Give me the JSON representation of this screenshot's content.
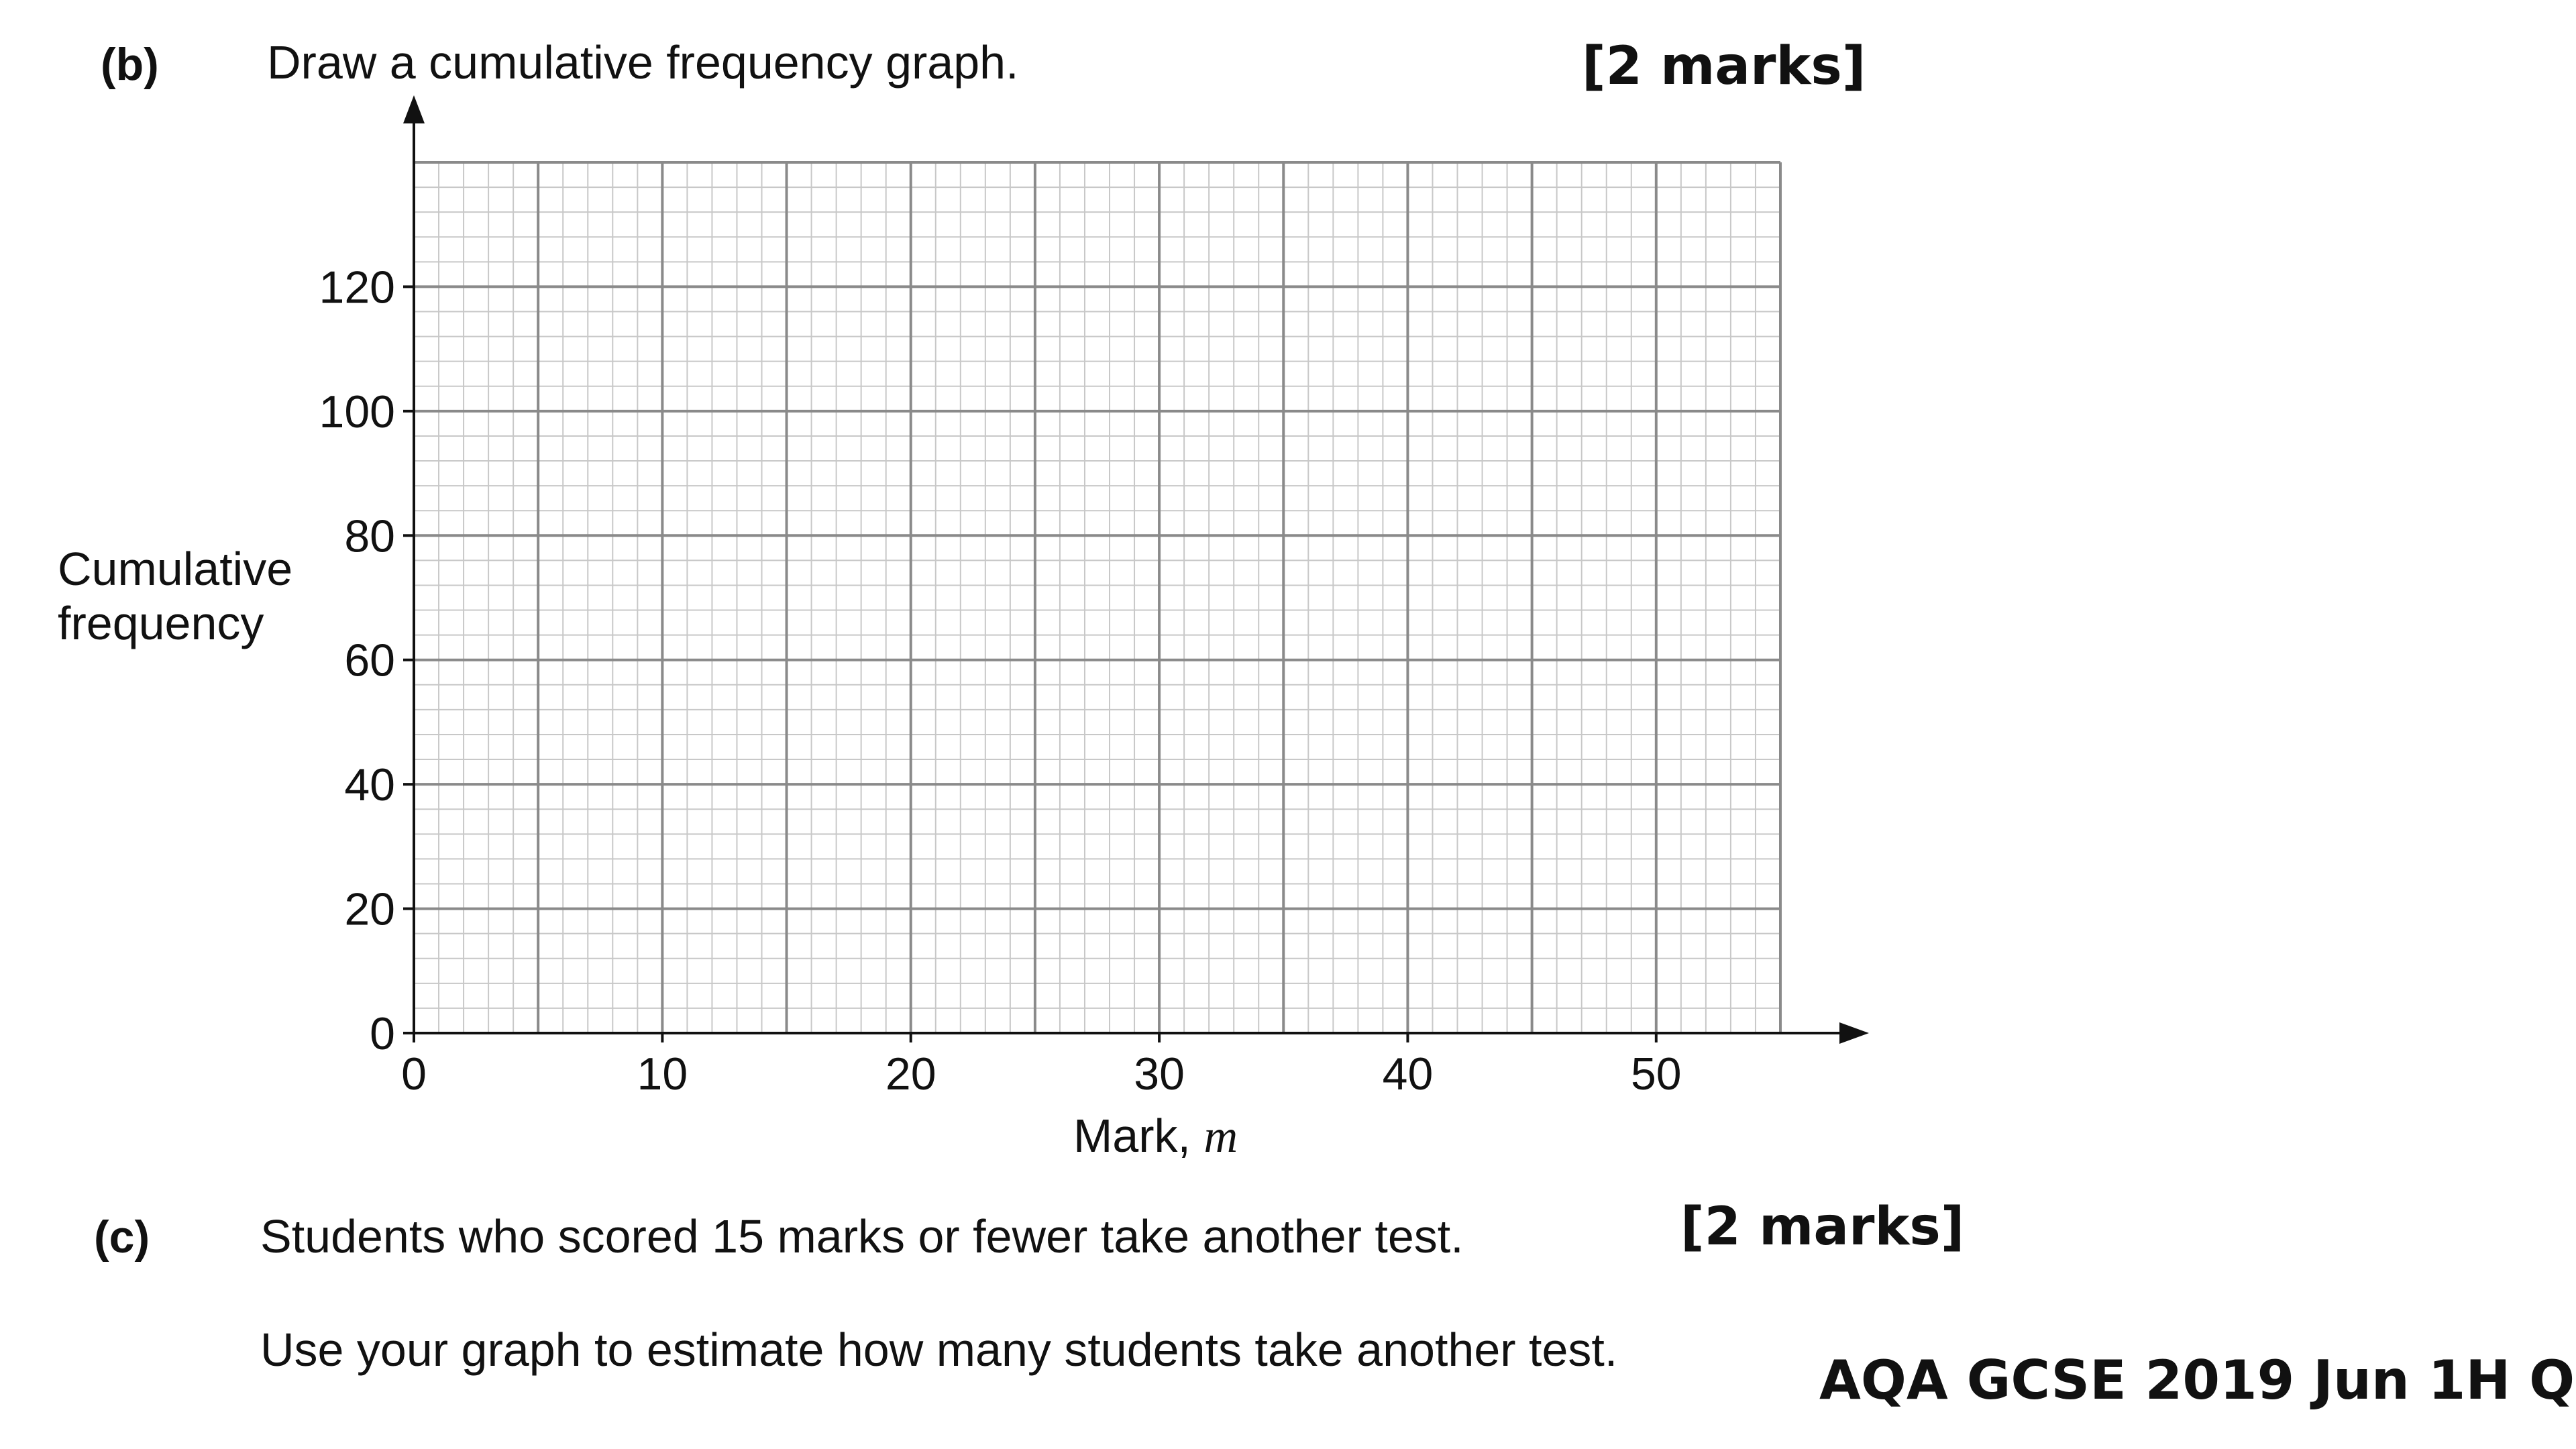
{
  "part_b": {
    "label": "(b)",
    "text": "Draw a cumulative frequency graph.",
    "marks": "[2 marks]"
  },
  "part_c": {
    "label": "(c)",
    "text_line1": "Students who scored 15 marks or fewer take another test.",
    "text_line2": "Use your graph to estimate how many students take another test.",
    "marks": "[2 marks]"
  },
  "source": "AQA GCSE 2019 Jun 1H Q15",
  "chart_data": {
    "type": "line",
    "title": "",
    "xlabel": "Mark,",
    "xlabel_var": "m",
    "ylabel": "Cumulative frequency",
    "xlim": [
      0,
      55
    ],
    "ylim": [
      0,
      140
    ],
    "x_ticks": [
      0,
      10,
      20,
      30,
      40,
      50
    ],
    "y_ticks": [
      0,
      20,
      40,
      60,
      80,
      100,
      120
    ],
    "major_grid_x_step": 5,
    "major_grid_y_step": 20,
    "minor_grid_x_step": 1,
    "minor_grid_y_step": 4,
    "grid": true,
    "series": [],
    "colors": {
      "minor_grid": "#c8c8c8",
      "major_grid": "#8a8a8a",
      "axis": "#111111"
    }
  }
}
